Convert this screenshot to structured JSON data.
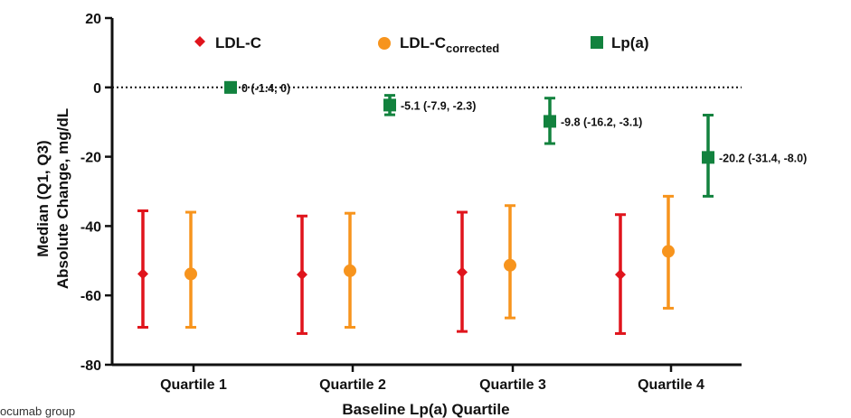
{
  "chart_data": {
    "type": "scatter",
    "xlabel": "Baseline Lp(a) Quartile",
    "ylabel_line1": "Median (Q1, Q3)",
    "ylabel_line2": "Absolute Change, mg/dL",
    "ylim": [
      -80,
      20
    ],
    "yticks": [
      20,
      0,
      -20,
      -40,
      -60,
      -80
    ],
    "categories": [
      "Quartile 1",
      "Quartile 2",
      "Quartile 3",
      "Quartile 4"
    ],
    "reference_line": 0,
    "grid": false,
    "legend_position": "top",
    "series": [
      {
        "name": "LDL-C",
        "name_subscript": "",
        "color": "#e0141c",
        "marker": "diamond",
        "median": [
          -53.8,
          -54.0,
          -53.3,
          -54.0
        ],
        "q1": [
          -69.2,
          -71.0,
          -70.4,
          -71.0
        ],
        "q3": [
          -35.6,
          -37.1,
          -36.0,
          -36.7
        ],
        "labels": []
      },
      {
        "name": "LDL-C",
        "name_subscript": "corrected",
        "color": "#f7941d",
        "marker": "circle",
        "median": [
          -53.8,
          -52.9,
          -51.3,
          -47.3
        ],
        "q1": [
          -69.2,
          -69.2,
          -66.5,
          -63.7
        ],
        "q3": [
          -36.0,
          -36.3,
          -34.1,
          -31.4
        ],
        "labels": []
      },
      {
        "name": "Lp(a)",
        "name_subscript": "",
        "color": "#12823e",
        "marker": "square",
        "median": [
          0,
          -5.1,
          -9.8,
          -20.2
        ],
        "q1": [
          -1.4,
          -7.9,
          -16.2,
          -31.4
        ],
        "q3": [
          0,
          -2.3,
          -3.1,
          -8.0
        ],
        "labels": [
          "0 (-1.4, 0)",
          "-5.1 (-7.9, -2.3)",
          "-9.8 (-16.2, -3.1)",
          "-20.2 (-31.4, -8.0)"
        ]
      }
    ]
  },
  "caption": "ocumab group"
}
